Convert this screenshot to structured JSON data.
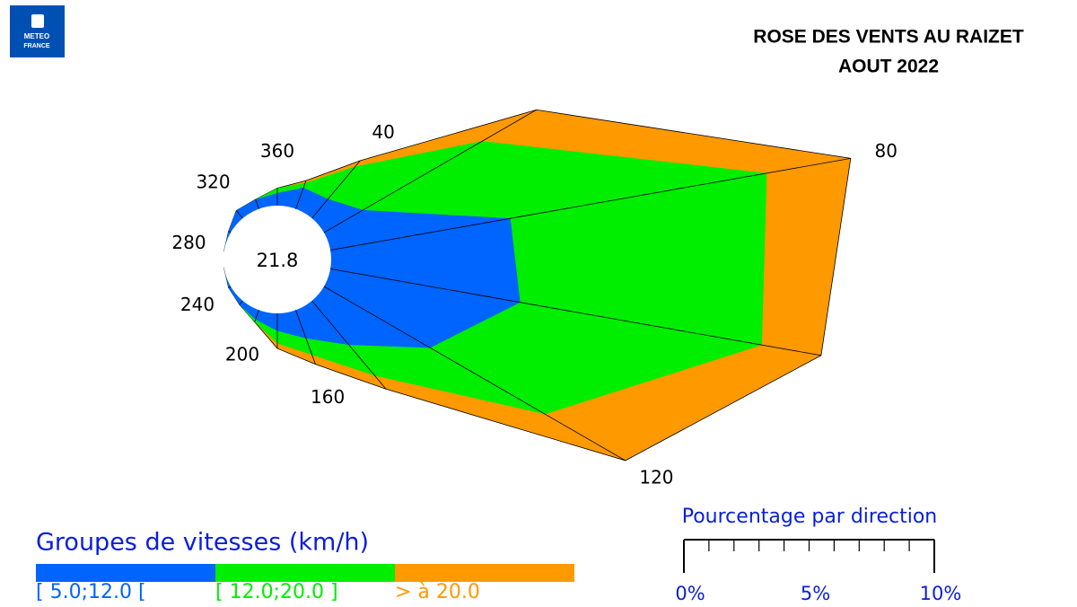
{
  "logo": {
    "line1": "METEO",
    "line2": "FRANCE"
  },
  "chart_data": {
    "type": "windrose",
    "title": "ROSE DES VENTS AU RAIZET",
    "subtitle": "AOUT 2022",
    "calm": 21.8,
    "categories": [
      null,
      "40",
      null,
      "80",
      null,
      "120",
      null,
      "160",
      null,
      "200",
      null,
      "240",
      null,
      "280",
      null,
      "320",
      null,
      "360"
    ],
    "series": [
      {
        "name": "[ 5.0;12.0 [",
        "color": "#0064ff",
        "values": [
          0.9,
          1.0,
          1.8,
          7.3,
          7.7,
          4.9,
          2.3,
          1.2,
          0.7,
          0.4,
          0.2,
          0.1,
          0,
          0,
          0.1,
          0.4,
          0.4,
          0.5
        ]
      },
      {
        "name": "[ 12.0;20.0 ]",
        "color": "#00ee00",
        "values": [
          0.2,
          1.7,
          5.5,
          10.4,
          9.8,
          5.3,
          1.6,
          0.7,
          0.5,
          0.1,
          0,
          0,
          0,
          0,
          0,
          0,
          0,
          0.2
        ]
      },
      {
        "name": "> à 20.0",
        "color": "#ff9900",
        "values": [
          0.1,
          0.3,
          2.5,
          3.4,
          2.4,
          3.7,
          0.7,
          0.4,
          0.2,
          0,
          0,
          0,
          0,
          0,
          0,
          0,
          0,
          0
        ]
      }
    ],
    "legend_title": "Groupes de vitesses (km/h)",
    "scale": {
      "title": "Pourcentage par direction",
      "xlim": [
        0,
        10
      ],
      "xticks": [
        {
          "value": 0,
          "label": "0%"
        },
        {
          "value": 5,
          "label": "5%"
        },
        {
          "value": 10,
          "label": "10%"
        }
      ],
      "minor_xticks": [
        1,
        2,
        3,
        4,
        6,
        7,
        8,
        9
      ]
    }
  }
}
